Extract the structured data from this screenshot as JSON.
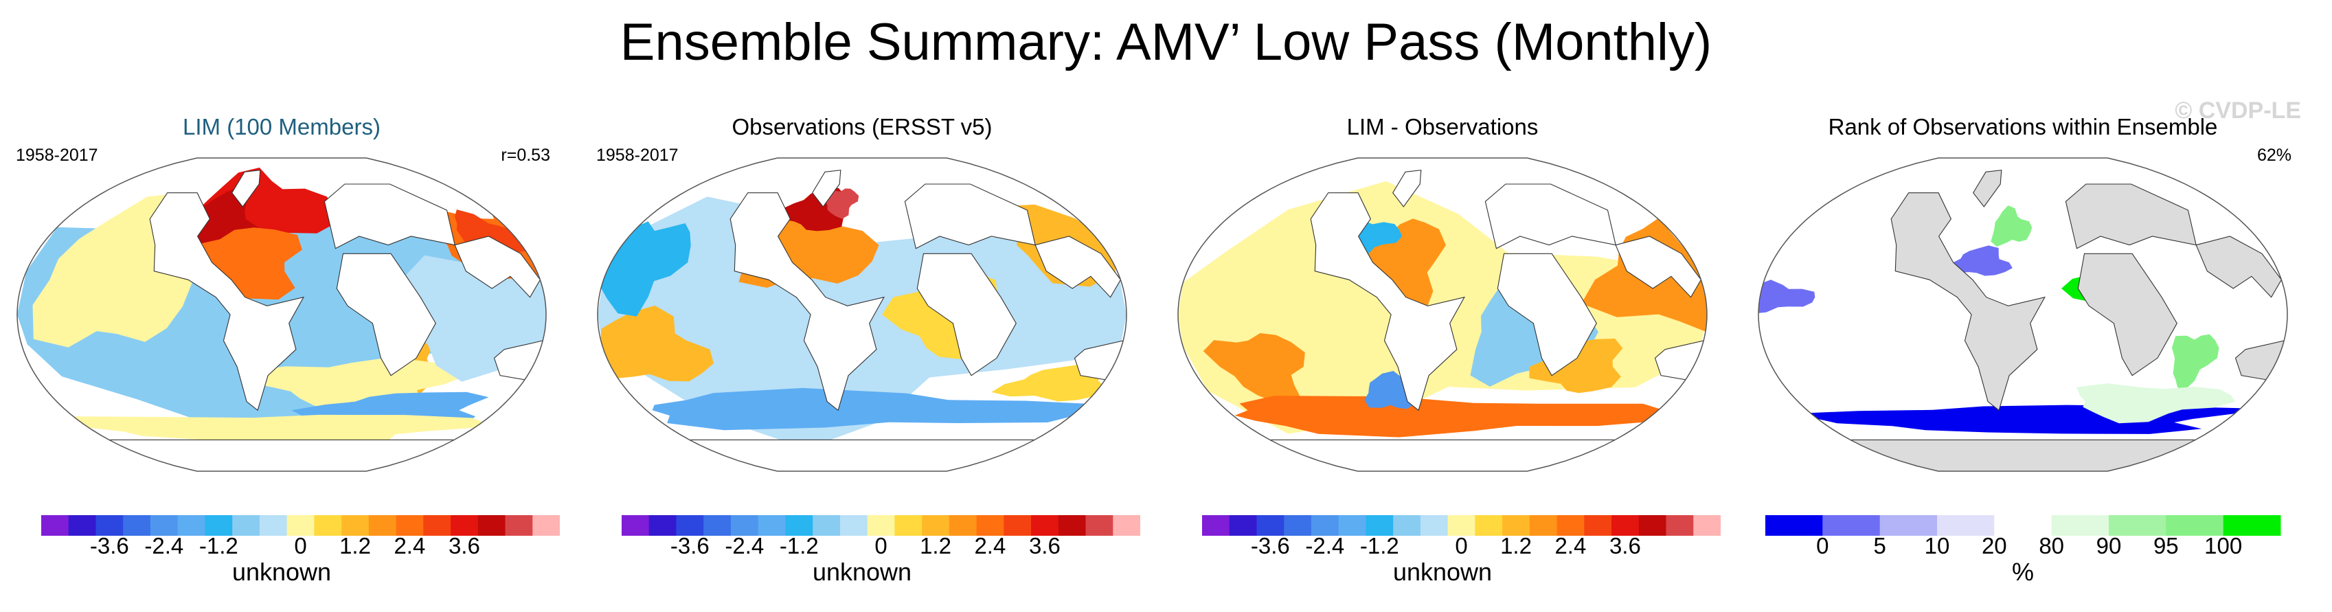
{
  "title": "Ensemble Summary: AMV’ Low Pass (Monthly)",
  "watermark": "© CVDP-LE",
  "colors": {
    "anomaly_scale": [
      "#7f1ed6",
      "#3519d0",
      "#2b47e0",
      "#3a70e8",
      "#4f96ee",
      "#5dadf3",
      "#28b5f0",
      "#88ccf2",
      "#b8e0f7",
      "#fff6a0",
      "#ffd93d",
      "#ffb928",
      "#ff9518",
      "#ff7010",
      "#f44310",
      "#e4140f",
      "#c20a0a",
      "#d94649",
      "#ffb3b3"
    ],
    "rank_scale": [
      "#0000f0",
      "#6e6ef5",
      "#b3b3f7",
      "#e0e0fb",
      "#ffffff",
      "#dffadf",
      "#a4f2a4",
      "#86f086",
      "#00ef00"
    ],
    "land": "#ffffff",
    "rank_land": "#dcdcdc"
  },
  "chart_data": [
    {
      "type": "heatmap",
      "title": "LIM (100 Members)",
      "period": "1958-2017",
      "stat": "r=0.53",
      "colorbar": {
        "ticks": [
          "-3.6",
          "-2.4",
          "-1.2",
          "0",
          "1.2",
          "2.4",
          "3.6"
        ],
        "tick_values": [
          -3.6,
          -2.4,
          -1.2,
          0,
          1.2,
          2.4,
          3.6
        ],
        "levels": [
          -4.8,
          -4.2,
          -3.6,
          -3.0,
          -2.4,
          -1.8,
          -1.2,
          -0.6,
          -0.15,
          0.15,
          0.6,
          1.2,
          1.8,
          2.4,
          3.0,
          3.6,
          4.2,
          4.8,
          5.4,
          6.0
        ],
        "label": "unknown"
      },
      "regions": [
        {
          "lon": -20,
          "lat": 0,
          "rx": 200,
          "ry": 60,
          "level": 7
        },
        {
          "lon": -20,
          "lat": 60,
          "rx": 60,
          "ry": 20,
          "level": 15
        },
        {
          "lon": -50,
          "lat": 50,
          "rx": 30,
          "ry": 20,
          "level": 16
        },
        {
          "lon": -30,
          "lat": 30,
          "rx": 45,
          "ry": 20,
          "level": 13
        },
        {
          "lon": 170,
          "lat": 40,
          "rx": 55,
          "ry": 20,
          "level": 13
        },
        {
          "lon": 160,
          "lat": 45,
          "rx": 25,
          "ry": 12,
          "level": 14
        },
        {
          "lon": 90,
          "lat": -30,
          "rx": 20,
          "ry": 20,
          "level": 11
        },
        {
          "lon": 60,
          "lat": -40,
          "rx": 70,
          "ry": 15,
          "level": 9
        },
        {
          "lon": 150,
          "lat": 0,
          "rx": 70,
          "ry": 30,
          "level": 8
        },
        {
          "lon": -120,
          "lat": 20,
          "rx": 50,
          "ry": 40,
          "level": 9
        },
        {
          "lon": 100,
          "lat": -55,
          "rx": 70,
          "ry": 10,
          "level": 5
        },
        {
          "lon": 0,
          "lat": -65,
          "rx": 200,
          "ry": 8,
          "level": 9
        }
      ]
    },
    {
      "type": "heatmap",
      "title": "Observations (ERSST v5)",
      "period": "1958-2017",
      "stat": "",
      "colorbar": {
        "ticks": [
          "-3.6",
          "-2.4",
          "-1.2",
          "0",
          "1.2",
          "2.4",
          "3.6"
        ],
        "tick_values": [
          -3.6,
          -2.4,
          -1.2,
          0,
          1.2,
          2.4,
          3.6
        ],
        "levels": [
          -4.8,
          -4.2,
          -3.6,
          -3.0,
          -2.4,
          -1.8,
          -1.2,
          -0.6,
          -0.15,
          0.15,
          0.6,
          1.2,
          1.8,
          2.4,
          3.0,
          3.6,
          4.2,
          4.8,
          5.4,
          6.0
        ],
        "label": "unknown"
      },
      "regions": [
        {
          "lon": -20,
          "lat": 0,
          "rx": 200,
          "ry": 60,
          "level": 8
        },
        {
          "lon": -40,
          "lat": 40,
          "rx": 45,
          "ry": 25,
          "level": 12
        },
        {
          "lon": -40,
          "lat": 60,
          "rx": 25,
          "ry": 12,
          "level": 16
        },
        {
          "lon": -20,
          "lat": 65,
          "rx": 15,
          "ry": 8,
          "level": 17
        },
        {
          "lon": 170,
          "lat": 40,
          "rx": 60,
          "ry": 20,
          "level": 11
        },
        {
          "lon": -150,
          "lat": -20,
          "rx": 40,
          "ry": 20,
          "level": 11
        },
        {
          "lon": 60,
          "lat": 0,
          "rx": 35,
          "ry": 25,
          "level": 10
        },
        {
          "lon": -160,
          "lat": 30,
          "rx": 30,
          "ry": 25,
          "level": 6
        },
        {
          "lon": 0,
          "lat": -55,
          "rx": 200,
          "ry": 10,
          "level": 5
        },
        {
          "lon": 150,
          "lat": -40,
          "rx": 40,
          "ry": 10,
          "level": 10
        }
      ]
    },
    {
      "type": "heatmap",
      "title": "LIM - Observations",
      "period": "",
      "stat": "",
      "colorbar": {
        "ticks": [
          "-3.6",
          "-2.4",
          "-1.2",
          "0",
          "1.2",
          "2.4",
          "3.6"
        ],
        "tick_values": [
          -3.6,
          -2.4,
          -1.2,
          0,
          1.2,
          2.4,
          3.6
        ],
        "levels": [
          -4.8,
          -4.2,
          -3.6,
          -3.0,
          -2.4,
          -1.8,
          -1.2,
          -0.6,
          -0.15,
          0.15,
          0.6,
          1.2,
          1.8,
          2.4,
          3.0,
          3.6,
          4.2,
          4.8,
          5.4,
          6.0
        ],
        "label": "unknown"
      },
      "regions": [
        {
          "lon": -20,
          "lat": 0,
          "rx": 200,
          "ry": 60,
          "level": 9
        },
        {
          "lon": 170,
          "lat": 20,
          "rx": 60,
          "ry": 30,
          "level": 12
        },
        {
          "lon": -30,
          "lat": 30,
          "rx": 30,
          "ry": 25,
          "level": 12
        },
        {
          "lon": -60,
          "lat": 45,
          "rx": 25,
          "ry": 10,
          "level": 6
        },
        {
          "lon": 60,
          "lat": -10,
          "rx": 40,
          "ry": 30,
          "level": 7
        },
        {
          "lon": 100,
          "lat": -30,
          "rx": 30,
          "ry": 15,
          "level": 11
        },
        {
          "lon": -130,
          "lat": -30,
          "rx": 30,
          "ry": 20,
          "level": 12
        },
        {
          "lon": 0,
          "lat": -58,
          "rx": 200,
          "ry": 10,
          "level": 13
        },
        {
          "lon": -40,
          "lat": -45,
          "rx": 20,
          "ry": 10,
          "level": 4
        }
      ]
    },
    {
      "type": "heatmap",
      "title": "Rank of Observations within Ensemble",
      "period": "",
      "stat": "62%",
      "colorbar": {
        "ticks": [
          "0",
          "5",
          "10",
          "20",
          "80",
          "90",
          "95",
          "100"
        ],
        "tick_values": [
          0,
          5,
          10,
          20,
          80,
          90,
          95,
          100
        ],
        "levels": [
          0,
          5,
          10,
          20,
          80,
          90,
          95,
          100
        ],
        "label": "%"
      },
      "regions": [
        {
          "lon": -20,
          "lat": 0,
          "rx": 200,
          "ry": 60,
          "level": 4
        },
        {
          "lon": 60,
          "lat": 15,
          "rx": 25,
          "ry": 15,
          "level": 8
        },
        {
          "lon": 120,
          "lat": -25,
          "rx": 15,
          "ry": 15,
          "level": 7
        },
        {
          "lon": -170,
          "lat": 10,
          "rx": 25,
          "ry": 8,
          "level": 1
        },
        {
          "lon": -30,
          "lat": 30,
          "rx": 20,
          "ry": 8,
          "level": 1
        },
        {
          "lon": 0,
          "lat": -60,
          "rx": 200,
          "ry": 8,
          "level": 0
        },
        {
          "lon": 100,
          "lat": -50,
          "rx": 60,
          "ry": 10,
          "level": 5
        },
        {
          "lon": -10,
          "lat": 50,
          "rx": 15,
          "ry": 10,
          "level": 7
        }
      ]
    }
  ]
}
